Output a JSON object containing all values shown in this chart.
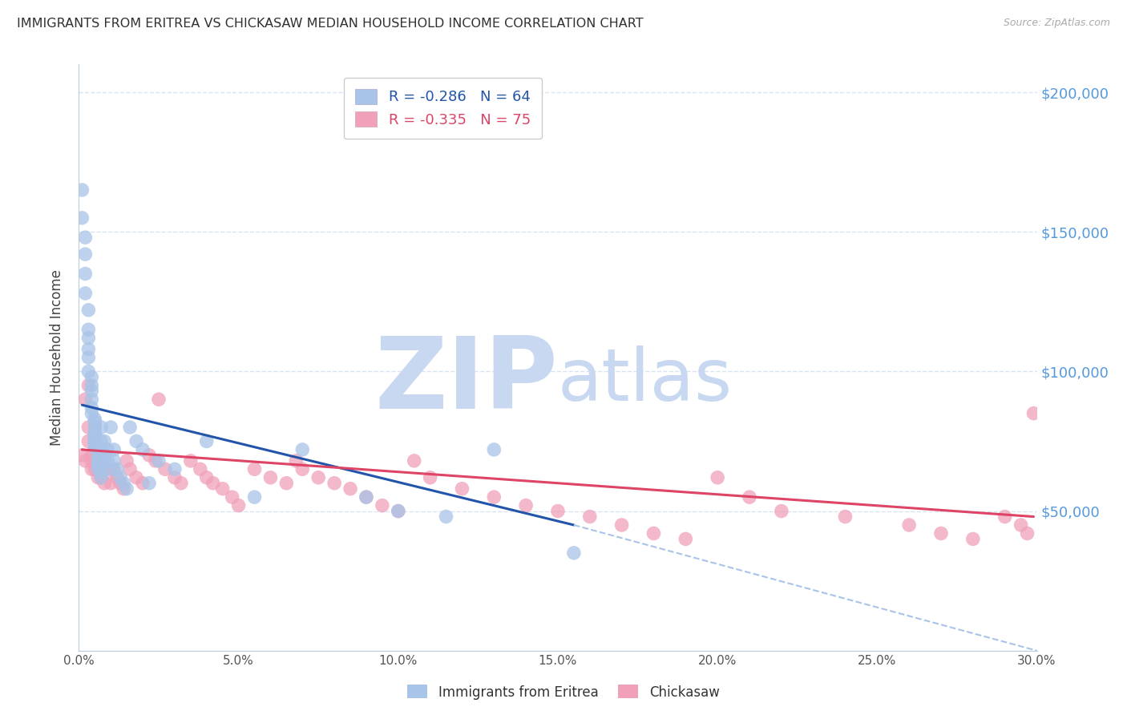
{
  "title": "IMMIGRANTS FROM ERITREA VS CHICKASAW MEDIAN HOUSEHOLD INCOME CORRELATION CHART",
  "source": "Source: ZipAtlas.com",
  "ylabel": "Median Household Income",
  "xlim": [
    0.0,
    0.3
  ],
  "ylim": [
    0,
    210000
  ],
  "yticks": [
    0,
    50000,
    100000,
    150000,
    200000
  ],
  "ytick_labels": [
    "",
    "$50,000",
    "$100,000",
    "$150,000",
    "$200,000"
  ],
  "xticks": [
    0.0,
    0.05,
    0.1,
    0.15,
    0.2,
    0.25,
    0.3
  ],
  "xtick_labels": [
    "0.0%",
    "5.0%",
    "10.0%",
    "15.0%",
    "20.0%",
    "25.0%",
    "30.0%"
  ],
  "series1_label": "Immigrants from Eritrea",
  "series2_label": "Chickasaw",
  "series1_R": -0.286,
  "series1_N": 64,
  "series2_R": -0.335,
  "series2_N": 75,
  "series1_color": "#a8c4e8",
  "series2_color": "#f0a0b8",
  "series1_line_color": "#2255aa",
  "series2_line_color": "#dd4466",
  "watermark_zip": "ZIP",
  "watermark_atlas": "atlas",
  "watermark_color": "#c8d8f0",
  "title_color": "#303030",
  "ytick_color": "#5599dd",
  "grid_color": "#d8e4f0",
  "series1_x": [
    0.001,
    0.001,
    0.002,
    0.002,
    0.002,
    0.002,
    0.003,
    0.003,
    0.003,
    0.003,
    0.003,
    0.003,
    0.004,
    0.004,
    0.004,
    0.004,
    0.004,
    0.004,
    0.005,
    0.005,
    0.005,
    0.005,
    0.005,
    0.005,
    0.005,
    0.005,
    0.005,
    0.006,
    0.006,
    0.006,
    0.006,
    0.006,
    0.007,
    0.007,
    0.007,
    0.007,
    0.007,
    0.008,
    0.008,
    0.008,
    0.009,
    0.009,
    0.01,
    0.01,
    0.011,
    0.011,
    0.012,
    0.013,
    0.014,
    0.015,
    0.016,
    0.018,
    0.02,
    0.022,
    0.025,
    0.03,
    0.04,
    0.055,
    0.07,
    0.09,
    0.1,
    0.115,
    0.13,
    0.155
  ],
  "series1_y": [
    165000,
    155000,
    148000,
    142000,
    135000,
    128000,
    122000,
    115000,
    112000,
    108000,
    105000,
    100000,
    98000,
    95000,
    93000,
    90000,
    87000,
    85000,
    83000,
    82000,
    80000,
    78000,
    77000,
    76000,
    75000,
    74000,
    73000,
    72000,
    70000,
    68000,
    67000,
    65000,
    64000,
    62000,
    80000,
    75000,
    72000,
    70000,
    68000,
    75000,
    72000,
    68000,
    65000,
    80000,
    72000,
    68000,
    65000,
    62000,
    60000,
    58000,
    80000,
    75000,
    72000,
    60000,
    68000,
    65000,
    75000,
    55000,
    72000,
    55000,
    50000,
    48000,
    72000,
    35000
  ],
  "series2_x": [
    0.001,
    0.002,
    0.002,
    0.003,
    0.003,
    0.003,
    0.004,
    0.004,
    0.004,
    0.005,
    0.005,
    0.005,
    0.005,
    0.006,
    0.006,
    0.006,
    0.007,
    0.007,
    0.008,
    0.008,
    0.009,
    0.01,
    0.011,
    0.012,
    0.013,
    0.014,
    0.015,
    0.016,
    0.018,
    0.02,
    0.022,
    0.024,
    0.025,
    0.027,
    0.03,
    0.032,
    0.035,
    0.038,
    0.04,
    0.042,
    0.045,
    0.048,
    0.05,
    0.055,
    0.06,
    0.065,
    0.068,
    0.07,
    0.075,
    0.08,
    0.085,
    0.09,
    0.095,
    0.1,
    0.105,
    0.11,
    0.12,
    0.13,
    0.14,
    0.15,
    0.16,
    0.17,
    0.18,
    0.19,
    0.2,
    0.21,
    0.22,
    0.24,
    0.26,
    0.27,
    0.28,
    0.29,
    0.295,
    0.297,
    0.299
  ],
  "series2_y": [
    70000,
    68000,
    90000,
    95000,
    80000,
    75000,
    70000,
    68000,
    65000,
    80000,
    75000,
    72000,
    65000,
    70000,
    65000,
    62000,
    68000,
    62000,
    65000,
    60000,
    65000,
    60000,
    65000,
    62000,
    60000,
    58000,
    68000,
    65000,
    62000,
    60000,
    70000,
    68000,
    90000,
    65000,
    62000,
    60000,
    68000,
    65000,
    62000,
    60000,
    58000,
    55000,
    52000,
    65000,
    62000,
    60000,
    68000,
    65000,
    62000,
    60000,
    58000,
    55000,
    52000,
    50000,
    68000,
    62000,
    58000,
    55000,
    52000,
    50000,
    48000,
    45000,
    42000,
    40000,
    62000,
    55000,
    50000,
    48000,
    45000,
    42000,
    40000,
    48000,
    45000,
    42000,
    85000
  ],
  "trend1_x0": 0.001,
  "trend1_x1": 0.155,
  "trend1_y0": 88000,
  "trend1_y1": 45000,
  "trend1_ext_x1": 0.3,
  "trend1_ext_y1": 0,
  "trend2_x0": 0.001,
  "trend2_x1": 0.299,
  "trend2_y0": 72000,
  "trend2_y1": 48000
}
